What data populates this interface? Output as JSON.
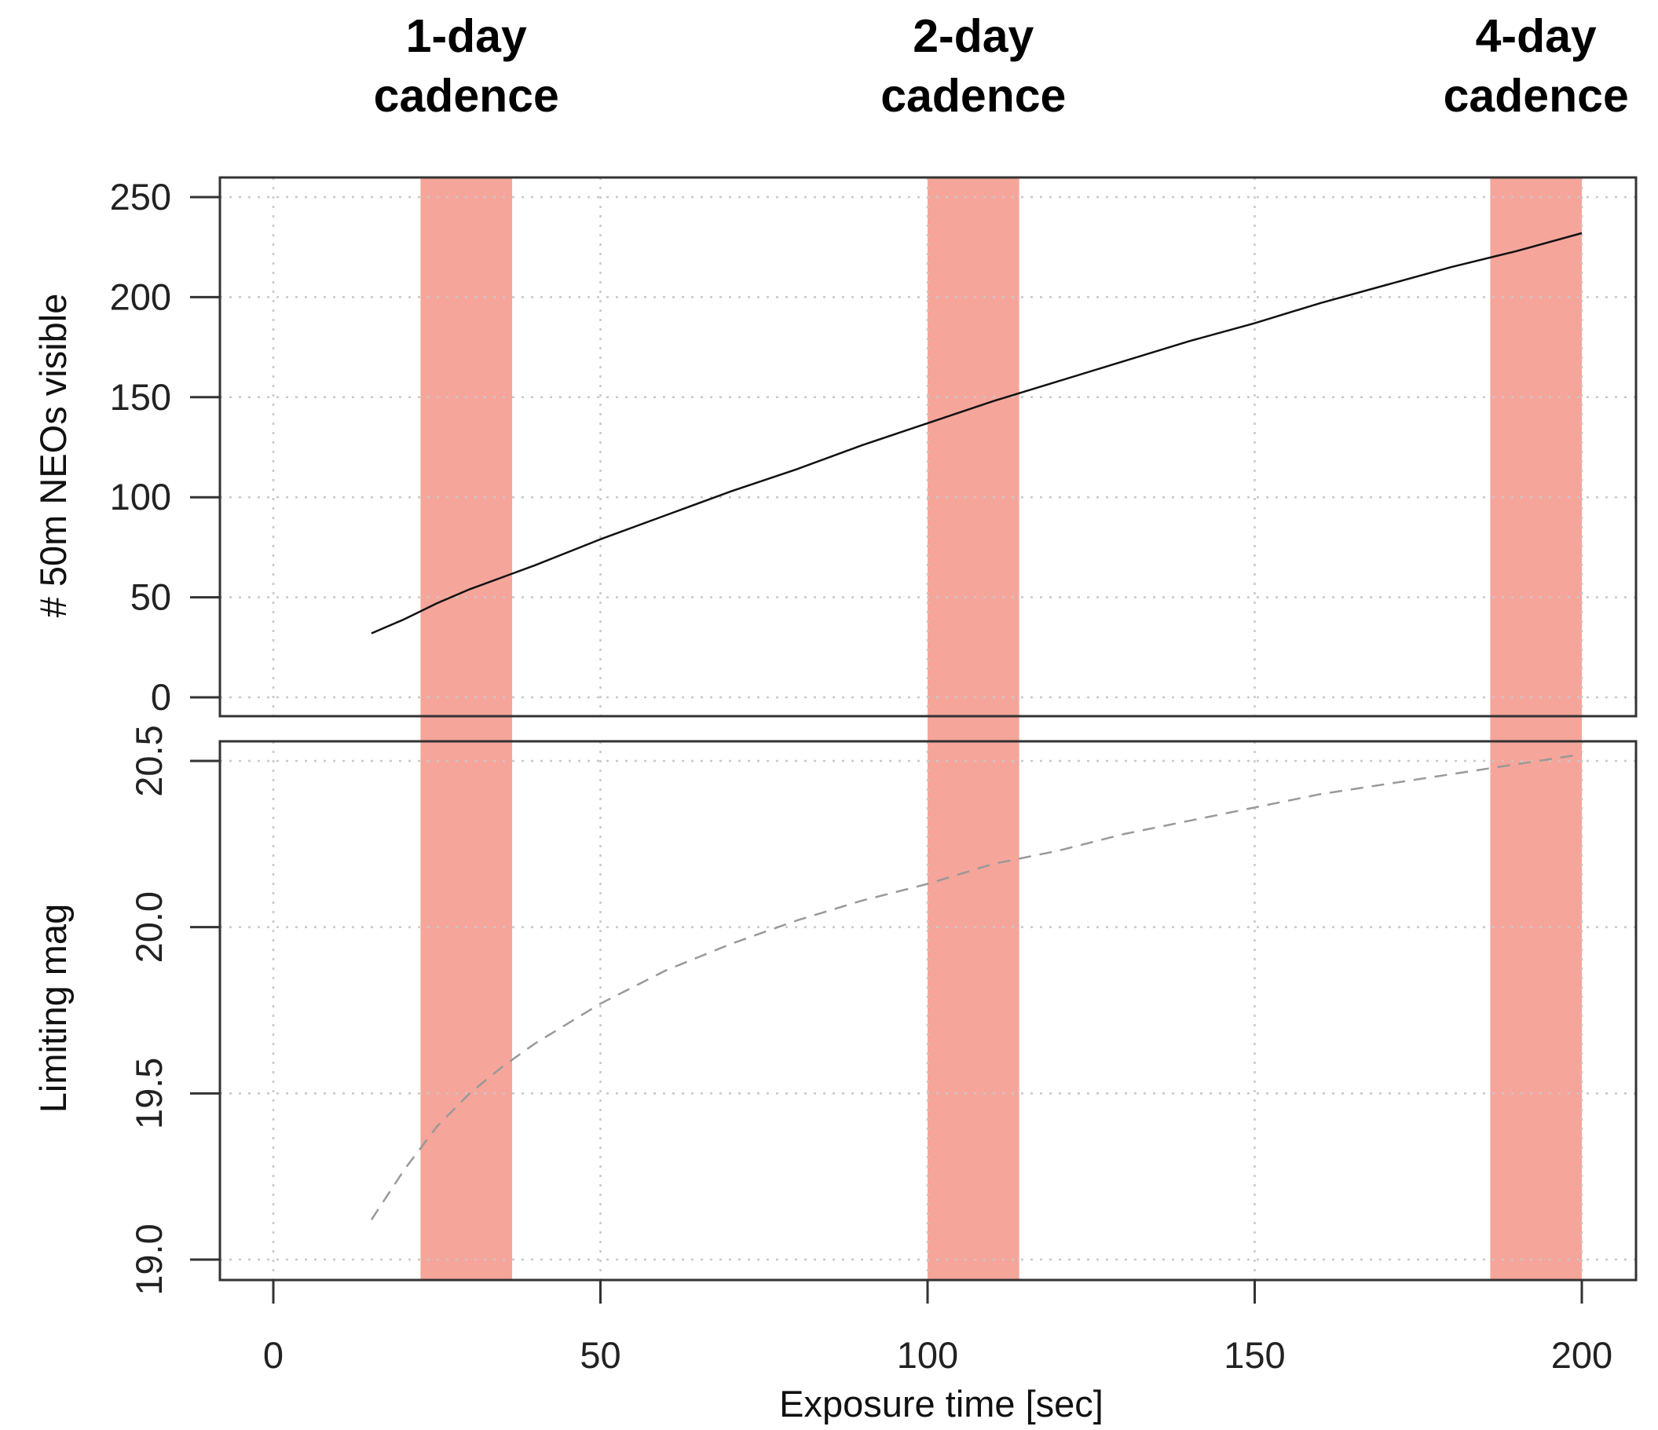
{
  "chart_data": [
    {
      "type": "line",
      "panel": "top",
      "ylabel": "# 50m NEOs visible",
      "xlim": [
        0,
        200
      ],
      "ylim": [
        0,
        250
      ],
      "yticks": [
        0,
        50,
        100,
        150,
        200,
        250
      ],
      "grid": true,
      "series": [
        {
          "line_style": "solid",
          "color": "#111111",
          "x": [
            15,
            20,
            25,
            30,
            35,
            40,
            50,
            60,
            70,
            80,
            90,
            100,
            110,
            120,
            130,
            140,
            150,
            160,
            170,
            180,
            190,
            200
          ],
          "values": [
            32,
            39,
            47,
            54,
            60,
            66,
            79,
            91,
            103,
            114,
            126,
            137,
            148,
            158,
            168,
            178,
            187,
            197,
            206,
            215,
            223,
            232
          ]
        }
      ]
    },
    {
      "type": "line",
      "panel": "bottom",
      "ylabel": "Limiting mag",
      "xlabel": "Exposure time [sec]",
      "xlim": [
        0,
        200
      ],
      "ylim": [
        19.0,
        20.5
      ],
      "xticks": [
        0,
        50,
        100,
        150,
        200
      ],
      "yticks": [
        "19.0",
        "19.5",
        "20.0",
        "20.5"
      ],
      "grid": true,
      "series": [
        {
          "line_style": "dashed",
          "color": "#999999",
          "x": [
            15,
            20,
            25,
            30,
            35,
            40,
            50,
            60,
            70,
            80,
            90,
            100,
            110,
            120,
            130,
            140,
            150,
            160,
            170,
            180,
            190,
            200
          ],
          "values": [
            19.12,
            19.27,
            19.4,
            19.5,
            19.58,
            19.65,
            19.77,
            19.87,
            19.95,
            20.02,
            20.08,
            20.13,
            20.19,
            20.23,
            20.28,
            20.32,
            20.36,
            20.4,
            20.43,
            20.46,
            20.49,
            20.52
          ]
        }
      ]
    }
  ],
  "bands": [
    {
      "label": [
        "1-day",
        "cadence"
      ],
      "x_start": 22.5,
      "x_end": 36.5
    },
    {
      "label": [
        "2-day",
        "cadence"
      ],
      "x_start": 100,
      "x_end": 114
    },
    {
      "label": [
        "4-day",
        "cadence"
      ],
      "x_start": 186,
      "x_end": 200
    }
  ],
  "colors": {
    "band": "#f6a59a",
    "grid": "#c8c8c8",
    "frame": "#333333"
  }
}
